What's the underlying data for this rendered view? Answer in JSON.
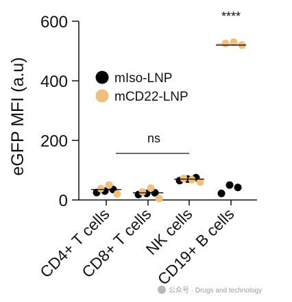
{
  "chart_data": {
    "type": "scatter",
    "ylabel": "eGFP MFI (a.u)",
    "ylim": [
      0,
      600
    ],
    "yticks": [
      "0",
      "200",
      "400",
      "600"
    ],
    "categories": [
      "CD4+ T cells",
      "CD8+ T cells",
      "NK cells",
      "CD19+ B cells"
    ],
    "legend_position": "upper-left",
    "grid": false,
    "series": [
      {
        "name": "mIso-LNP",
        "color": "#000000",
        "points": [
          {
            "category": 0,
            "values": [
              25,
              30,
              35
            ]
          },
          {
            "category": 1,
            "values": [
              18,
              22,
              24
            ]
          },
          {
            "category": 2,
            "values": [
              65,
              70,
              75
            ]
          },
          {
            "category": 3,
            "values": [
              22,
              50,
              42
            ]
          }
        ]
      },
      {
        "name": "mCD22-LNP",
        "color": "#f0c07a",
        "points": [
          {
            "category": 0,
            "values": [
              38,
              50,
              20
            ]
          },
          {
            "category": 1,
            "values": [
              27,
              40,
              5
            ]
          },
          {
            "category": 2,
            "values": [
              72,
              68,
              60
            ]
          },
          {
            "category": 3,
            "values": [
              525,
              530,
              520
            ]
          }
        ]
      }
    ],
    "annotations": [
      {
        "text": "ns",
        "from_category": 0,
        "to_category": 2
      },
      {
        "text": "****",
        "category": 3
      }
    ]
  },
  "watermark": {
    "text": "公众号 · Drugs and technology"
  }
}
